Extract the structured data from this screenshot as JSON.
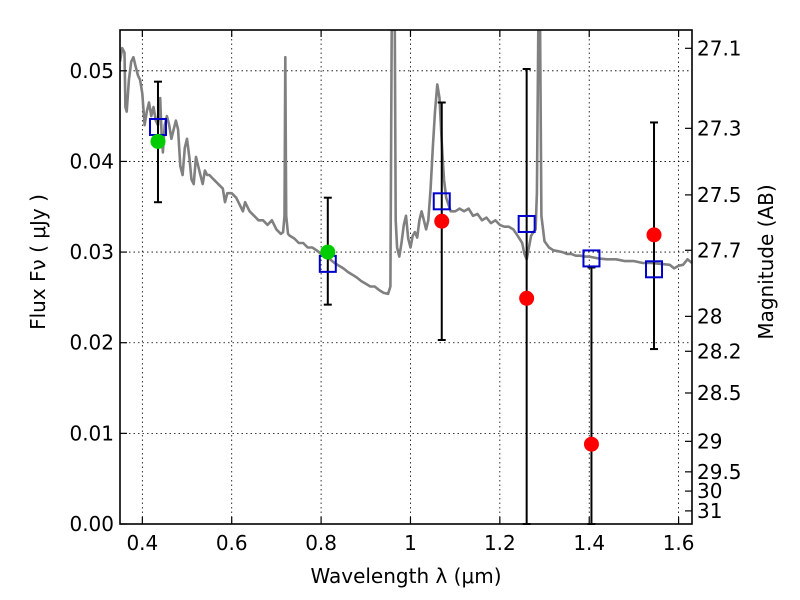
{
  "chart_data": {
    "type": "scatter",
    "xlabel": "Wavelength  λ (μm)",
    "ylabel_left": "Flux  Fν  ( μJy )",
    "ylabel_right": "Magnitude (AB)",
    "xlim": [
      0.35,
      1.63
    ],
    "ylim": [
      0.0,
      0.0545
    ],
    "x_ticks": [
      0.4,
      0.6,
      0.8,
      1.0,
      1.2,
      1.4,
      1.6
    ],
    "x_tick_labels": [
      "0.4",
      "0.6",
      "0.8",
      "1",
      "1.2",
      "1.4",
      "1.6"
    ],
    "y_ticks": [
      0.0,
      0.01,
      0.02,
      0.03,
      0.04,
      0.05
    ],
    "y_tick_labels": [
      "0.00",
      "0.01",
      "0.02",
      "0.03",
      "0.04",
      "0.05"
    ],
    "right_ticks": [
      {
        "label": "27.1",
        "mag": 27.1
      },
      {
        "label": "27.3",
        "mag": 27.3
      },
      {
        "label": "27.5",
        "mag": 27.5
      },
      {
        "label": "27.7",
        "mag": 27.7
      },
      {
        "label": "28",
        "mag": 28.0
      },
      {
        "label": "28.2",
        "mag": 28.2
      },
      {
        "label": "28.5",
        "mag": 28.5
      },
      {
        "label": "29",
        "mag": 29.0
      },
      {
        "label": "29.5",
        "mag": 29.5
      },
      {
        "label": "30",
        "mag": 30.0
      },
      {
        "label": "31",
        "mag": 31.0
      }
    ],
    "grid": true,
    "series": [
      {
        "kind": "line",
        "color": "#808080",
        "points": [
          [
            0.35,
            0.051
          ],
          [
            0.355,
            0.0525
          ],
          [
            0.36,
            0.052
          ],
          [
            0.362,
            0.046
          ],
          [
            0.365,
            0.0455
          ],
          [
            0.37,
            0.049
          ],
          [
            0.375,
            0.051
          ],
          [
            0.38,
            0.0515
          ],
          [
            0.385,
            0.0505
          ],
          [
            0.39,
            0.0495
          ],
          [
            0.395,
            0.049
          ],
          [
            0.4,
            0.0475
          ],
          [
            0.405,
            0.044
          ],
          [
            0.41,
            0.0455
          ],
          [
            0.415,
            0.0465
          ],
          [
            0.42,
            0.045
          ],
          [
            0.425,
            0.046
          ],
          [
            0.43,
            0.0445
          ],
          [
            0.435,
            0.044
          ],
          [
            0.44,
            0.047
          ],
          [
            0.443,
            0.043
          ],
          [
            0.446,
            0.041
          ],
          [
            0.45,
            0.044
          ],
          [
            0.455,
            0.045
          ],
          [
            0.46,
            0.044
          ],
          [
            0.465,
            0.0425
          ],
          [
            0.47,
            0.0435
          ],
          [
            0.475,
            0.0445
          ],
          [
            0.48,
            0.0435
          ],
          [
            0.485,
            0.0395
          ],
          [
            0.49,
            0.0385
          ],
          [
            0.495,
            0.0415
          ],
          [
            0.5,
            0.0425
          ],
          [
            0.505,
            0.0405
          ],
          [
            0.51,
            0.038
          ],
          [
            0.515,
            0.0375
          ],
          [
            0.52,
            0.0405
          ],
          [
            0.525,
            0.0395
          ],
          [
            0.53,
            0.0385
          ],
          [
            0.535,
            0.0375
          ],
          [
            0.54,
            0.039
          ],
          [
            0.545,
            0.0385
          ],
          [
            0.55,
            0.0385
          ],
          [
            0.56,
            0.038
          ],
          [
            0.57,
            0.0375
          ],
          [
            0.58,
            0.037
          ],
          [
            0.585,
            0.0355
          ],
          [
            0.59,
            0.0365
          ],
          [
            0.6,
            0.0365
          ],
          [
            0.61,
            0.036
          ],
          [
            0.62,
            0.035
          ],
          [
            0.625,
            0.0345
          ],
          [
            0.63,
            0.0355
          ],
          [
            0.64,
            0.0345
          ],
          [
            0.65,
            0.034
          ],
          [
            0.66,
            0.0335
          ],
          [
            0.67,
            0.0335
          ],
          [
            0.68,
            0.033
          ],
          [
            0.69,
            0.0335
          ],
          [
            0.7,
            0.0325
          ],
          [
            0.71,
            0.032
          ],
          [
            0.715,
            0.0322
          ],
          [
            0.718,
            0.034
          ],
          [
            0.72,
            0.0515
          ],
          [
            0.722,
            0.034
          ],
          [
            0.726,
            0.032
          ],
          [
            0.73,
            0.0318
          ],
          [
            0.74,
            0.0315
          ],
          [
            0.75,
            0.031
          ],
          [
            0.76,
            0.031
          ],
          [
            0.77,
            0.0305
          ],
          [
            0.78,
            0.0305
          ],
          [
            0.79,
            0.0302
          ],
          [
            0.8,
            0.0298
          ],
          [
            0.81,
            0.0295
          ],
          [
            0.82,
            0.0292
          ],
          [
            0.83,
            0.0288
          ],
          [
            0.84,
            0.0285
          ],
          [
            0.85,
            0.0282
          ],
          [
            0.86,
            0.0278
          ],
          [
            0.87,
            0.0275
          ],
          [
            0.88,
            0.0272
          ],
          [
            0.89,
            0.0268
          ],
          [
            0.9,
            0.0265
          ],
          [
            0.91,
            0.0262
          ],
          [
            0.92,
            0.0262
          ],
          [
            0.93,
            0.0258
          ],
          [
            0.94,
            0.0255
          ],
          [
            0.95,
            0.0254
          ],
          [
            0.955,
            0.0262
          ],
          [
            0.958,
            0.0545
          ],
          [
            0.962,
            0.0545
          ],
          [
            0.965,
            0.0545
          ],
          [
            0.967,
            0.0335
          ],
          [
            0.97,
            0.0305
          ],
          [
            0.975,
            0.0295
          ],
          [
            0.98,
            0.031
          ],
          [
            0.985,
            0.033
          ],
          [
            0.99,
            0.034
          ],
          [
            0.995,
            0.0315
          ],
          [
            1.0,
            0.0305
          ],
          [
            1.005,
            0.0318
          ],
          [
            1.01,
            0.0322
          ],
          [
            1.015,
            0.0316
          ],
          [
            1.02,
            0.0335
          ],
          [
            1.025,
            0.0345
          ],
          [
            1.03,
            0.0335
          ],
          [
            1.035,
            0.0325
          ],
          [
            1.04,
            0.0335
          ],
          [
            1.045,
            0.037
          ],
          [
            1.05,
            0.0415
          ],
          [
            1.055,
            0.0455
          ],
          [
            1.06,
            0.0485
          ],
          [
            1.065,
            0.047
          ],
          [
            1.07,
            0.042
          ],
          [
            1.075,
            0.038
          ],
          [
            1.08,
            0.036
          ],
          [
            1.09,
            0.0345
          ],
          [
            1.1,
            0.0345
          ],
          [
            1.11,
            0.0348
          ],
          [
            1.12,
            0.0345
          ],
          [
            1.13,
            0.0348
          ],
          [
            1.14,
            0.034
          ],
          [
            1.15,
            0.0342
          ],
          [
            1.16,
            0.0335
          ],
          [
            1.17,
            0.0338
          ],
          [
            1.18,
            0.0332
          ],
          [
            1.19,
            0.0335
          ],
          [
            1.2,
            0.033
          ],
          [
            1.21,
            0.0328
          ],
          [
            1.22,
            0.0328
          ],
          [
            1.23,
            0.0325
          ],
          [
            1.24,
            0.0318
          ],
          [
            1.25,
            0.031
          ],
          [
            1.255,
            0.0298
          ],
          [
            1.26,
            0.0292
          ],
          [
            1.265,
            0.0305
          ],
          [
            1.27,
            0.0318
          ],
          [
            1.275,
            0.0322
          ],
          [
            1.28,
            0.0325
          ],
          [
            1.283,
            0.0365
          ],
          [
            1.286,
            0.0545
          ],
          [
            1.29,
            0.0545
          ],
          [
            1.293,
            0.034
          ],
          [
            1.3,
            0.0312
          ],
          [
            1.31,
            0.0305
          ],
          [
            1.32,
            0.0302
          ],
          [
            1.33,
            0.0301
          ],
          [
            1.34,
            0.03
          ],
          [
            1.35,
            0.0298
          ],
          [
            1.36,
            0.0298
          ],
          [
            1.37,
            0.0296
          ],
          [
            1.38,
            0.0296
          ],
          [
            1.39,
            0.0295
          ],
          [
            1.4,
            0.0295
          ],
          [
            1.42,
            0.0293
          ],
          [
            1.44,
            0.0292
          ],
          [
            1.46,
            0.0292
          ],
          [
            1.48,
            0.029
          ],
          [
            1.5,
            0.029
          ],
          [
            1.52,
            0.0288
          ],
          [
            1.54,
            0.0288
          ],
          [
            1.56,
            0.0287
          ],
          [
            1.58,
            0.0286
          ],
          [
            1.59,
            0.0282
          ],
          [
            1.6,
            0.0285
          ],
          [
            1.61,
            0.0286
          ],
          [
            1.62,
            0.0292
          ],
          [
            1.63,
            0.0288
          ]
        ]
      },
      {
        "kind": "errorbar",
        "color": "#000000",
        "points": [
          {
            "x": 0.435,
            "ylow": 0.0355,
            "yhigh": 0.0488
          },
          {
            "x": 0.815,
            "ylow": 0.0242,
            "yhigh": 0.036
          },
          {
            "x": 1.07,
            "ylow": 0.0203,
            "yhigh": 0.0465
          },
          {
            "x": 1.26,
            "ylow": 0.0,
            "yhigh": 0.0502
          },
          {
            "x": 1.405,
            "ylow": 0.0,
            "yhigh": 0.0283
          },
          {
            "x": 1.545,
            "ylow": 0.0193,
            "yhigh": 0.0443
          }
        ]
      },
      {
        "kind": "open-square",
        "color": "#0000cc",
        "points": [
          [
            0.435,
            0.0438
          ],
          [
            0.815,
            0.0287
          ],
          [
            1.07,
            0.0356
          ],
          [
            1.26,
            0.0331
          ],
          [
            1.405,
            0.0293
          ],
          [
            1.545,
            0.0281
          ]
        ]
      },
      {
        "kind": "filled-circle",
        "color": "#00cc00",
        "points": [
          [
            0.435,
            0.0422
          ],
          [
            0.815,
            0.03
          ]
        ]
      },
      {
        "kind": "filled-circle",
        "color": "#ff0000",
        "points": [
          [
            1.07,
            0.0334
          ],
          [
            1.26,
            0.0249
          ],
          [
            1.405,
            0.0088
          ],
          [
            1.545,
            0.0319
          ]
        ]
      }
    ]
  }
}
